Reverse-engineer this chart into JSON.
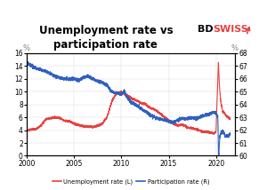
{
  "title_line1": "Unemployment rate vs",
  "title_line2": "participation rate",
  "title_fontsize": 8.5,
  "left_ylabel": "%",
  "right_ylabel": "%",
  "left_ylim": [
    0,
    16
  ],
  "right_ylim": [
    60,
    68
  ],
  "left_yticks": [
    0,
    2,
    4,
    6,
    8,
    10,
    12,
    14,
    16
  ],
  "right_yticks": [
    60,
    61,
    62,
    63,
    64,
    65,
    66,
    67,
    68
  ],
  "xlim_start": 2000,
  "xlim_end": 2022,
  "xticks": [
    2000,
    2005,
    2010,
    2015,
    2020
  ],
  "unemp_color": "#e84040",
  "part_color": "#3060c0",
  "background_color": "#ffffff",
  "bd_color": "#000000",
  "swiss_color": "#e84040",
  "unemp_label": "Unemployment rate (L)",
  "part_label": "Participation rate (R)"
}
